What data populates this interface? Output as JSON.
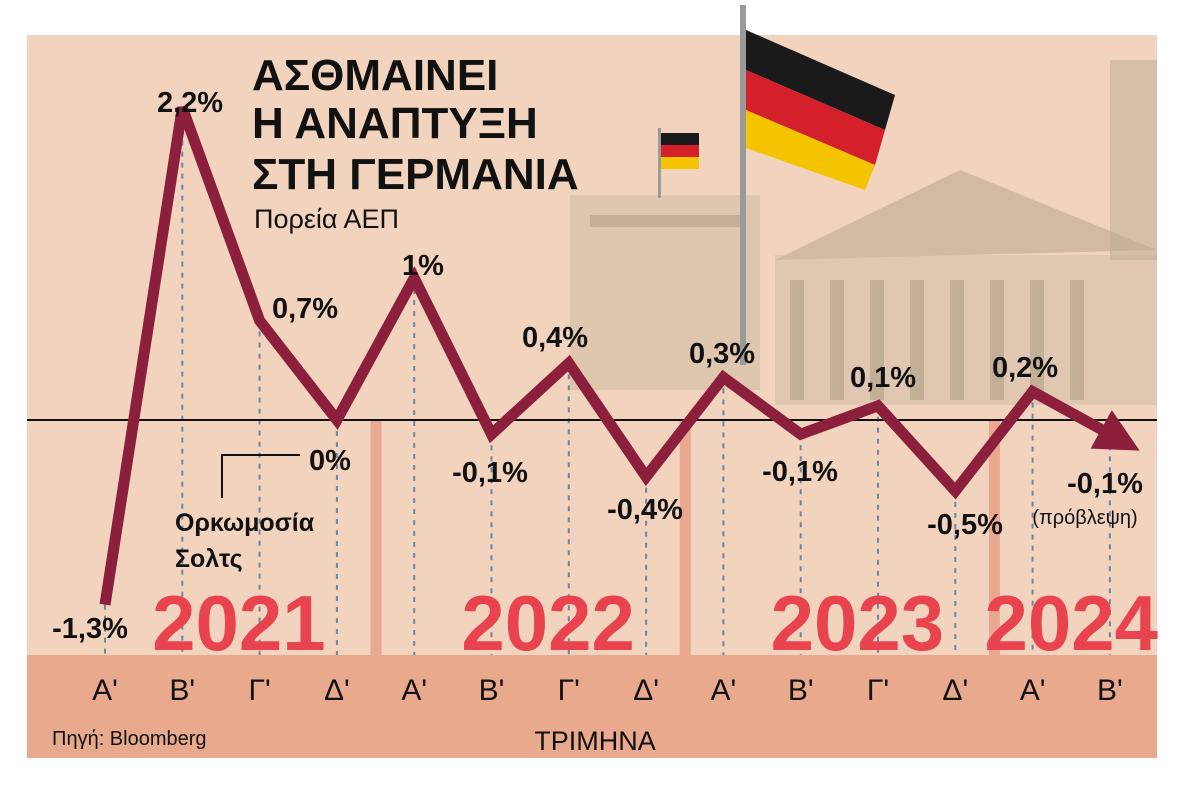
{
  "title_lines": [
    "ΑΣΘΜΑΙΝΕΙ",
    "Η ΑΝΑΠΤΥΞΗ",
    "ΣΤΗ ΓΕΡΜΑΝΙΑ"
  ],
  "subtitle": "Πορεία ΑΕΠ",
  "source": "Πηγή: Bloomberg",
  "annotation": [
    "Ορκωμοσία",
    "Σολτς"
  ],
  "forecast_note": "(πρόβλεψη)",
  "colors": {
    "background": "#f2d3bd",
    "band": "#e8a98d",
    "line": "#8c1f3c",
    "year": "#e8434f",
    "divider": "#eba890"
  },
  "chart_data": {
    "type": "line",
    "title": "ΑΣΘΜΑΙΝΕΙ Η ΑΝΑΠΤΥΞΗ ΣΤΗ ΓΕΡΜΑΝΙΑ",
    "subtitle": "Πορεία ΑΕΠ",
    "xlabel": "ΤΡΙΜΗΝΑ",
    "ylabel": "",
    "years": [
      "2021",
      "2022",
      "2023",
      "2024"
    ],
    "categories": [
      "Α'",
      "Β'",
      "Γ'",
      "Δ'",
      "Α'",
      "Β'",
      "Γ'",
      "Δ'",
      "Α'",
      "Β'",
      "Γ'",
      "Δ'",
      "Α'",
      "Β'"
    ],
    "values": [
      -1.3,
      2.2,
      0.7,
      0,
      1,
      -0.1,
      0.4,
      -0.4,
      0.3,
      -0.1,
      0.1,
      -0.5,
      0.2,
      -0.1
    ],
    "labels": [
      "-1,3%",
      "2,2%",
      "0,7%",
      "0%",
      "1%",
      "-0,1%",
      "0,4%",
      "-0,4%",
      "0,3%",
      "-0,1%",
      "0,1%",
      "-0,5%",
      "0,2%",
      "-0,1%"
    ],
    "forecast_index": 13,
    "grid": true
  }
}
